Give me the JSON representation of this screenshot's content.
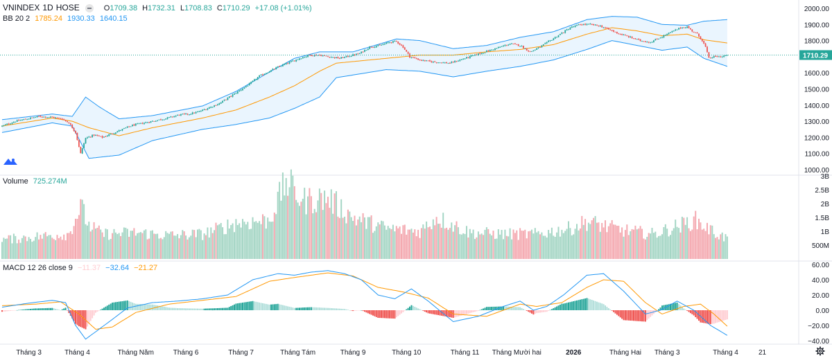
{
  "header": {
    "symbol": "VNINDEX",
    "interval": "1D",
    "exchange": "HOSE",
    "ohlc": {
      "o_label": "O",
      "o_value": "1709.38",
      "h_label": "H",
      "h_value": "1732.31",
      "l_label": "L",
      "l_value": "1708.83",
      "c_label": "C",
      "c_value": "1710.29",
      "change": "+17.08 (+1.01%)"
    }
  },
  "indicators": {
    "bb": {
      "name": "BB 20 2",
      "basis": "1785.24",
      "upper": "1930.33",
      "lower": "1640.15"
    },
    "volume": {
      "name": "Volume",
      "value": "725.274M"
    },
    "macd": {
      "name": "MACD 12 26 close 9",
      "hist": "−11.37",
      "macd": "−32.64",
      "signal": "−21.27"
    }
  },
  "colors": {
    "up": "#26a69a",
    "down": "#ef5350",
    "vol_up": "#a5d6c5",
    "vol_down": "#f4a9b0",
    "bb_line": "#2196f3",
    "bb_fill": "#e3f2fd",
    "basis": "#ff9800",
    "macd_line": "#2196f3",
    "signal_line": "#ff9800",
    "hist_up_strong": "#26a69a",
    "hist_up_weak": "#b2dfdb",
    "hist_dn_strong": "#ef5350",
    "hist_dn_weak": "#ffcdd2"
  },
  "last_price_label": "1710.29",
  "settings_icon": "gear-icon",
  "chart_data": [
    {
      "type": "candlestick",
      "title": "VNINDEX 1D HOSE",
      "ylim": [
        990,
        2010
      ],
      "y_ticks": [
        "2000.00",
        "1900.00",
        "1800.00",
        "1700.00",
        "1600.00",
        "1500.00",
        "1400.00",
        "1300.00",
        "1200.00",
        "1100.00",
        "1000.00"
      ],
      "last_price": 1710.29,
      "close_anchors": [
        [
          0,
          1270
        ],
        [
          8,
          1300
        ],
        [
          15,
          1315
        ],
        [
          22,
          1330
        ],
        [
          30,
          1325
        ],
        [
          36,
          1315
        ],
        [
          40,
          1290
        ],
        [
          44,
          1230
        ],
        [
          47,
          1100
        ],
        [
          50,
          1195
        ],
        [
          55,
          1215
        ],
        [
          60,
          1200
        ],
        [
          66,
          1225
        ],
        [
          72,
          1250
        ],
        [
          78,
          1275
        ],
        [
          85,
          1290
        ],
        [
          92,
          1305
        ],
        [
          99,
          1320
        ],
        [
          106,
          1340
        ],
        [
          112,
          1345
        ],
        [
          118,
          1360
        ],
        [
          124,
          1385
        ],
        [
          130,
          1410
        ],
        [
          136,
          1450
        ],
        [
          142,
          1490
        ],
        [
          148,
          1530
        ],
        [
          154,
          1580
        ],
        [
          160,
          1610
        ],
        [
          166,
          1640
        ],
        [
          172,
          1665
        ],
        [
          178,
          1690
        ],
        [
          184,
          1710
        ],
        [
          190,
          1710
        ],
        [
          196,
          1700
        ],
        [
          202,
          1690
        ],
        [
          208,
          1705
        ],
        [
          214,
          1720
        ],
        [
          220,
          1760
        ],
        [
          226,
          1770
        ],
        [
          232,
          1790
        ],
        [
          236,
          1795
        ],
        [
          240,
          1760
        ],
        [
          244,
          1700
        ],
        [
          250,
          1680
        ],
        [
          256,
          1670
        ],
        [
          262,
          1665
        ],
        [
          268,
          1660
        ],
        [
          274,
          1680
        ],
        [
          280,
          1700
        ],
        [
          286,
          1720
        ],
        [
          292,
          1740
        ],
        [
          298,
          1760
        ],
        [
          304,
          1780
        ],
        [
          310,
          1770
        ],
        [
          316,
          1730
        ],
        [
          322,
          1760
        ],
        [
          328,
          1800
        ],
        [
          334,
          1840
        ],
        [
          340,
          1880
        ],
        [
          346,
          1900
        ],
        [
          352,
          1900
        ],
        [
          358,
          1890
        ],
        [
          364,
          1865
        ],
        [
          370,
          1840
        ],
        [
          376,
          1820
        ],
        [
          382,
          1800
        ],
        [
          388,
          1790
        ],
        [
          394,
          1820
        ],
        [
          400,
          1850
        ],
        [
          406,
          1880
        ],
        [
          410,
          1885
        ],
        [
          413,
          1860
        ],
        [
          416,
          1840
        ],
        [
          419,
          1800
        ],
        [
          421,
          1760
        ],
        [
          423,
          1690
        ],
        [
          426,
          1700
        ],
        [
          430,
          1700
        ],
        [
          434,
          1710
        ]
      ],
      "series": [
        {
          "name": "BB upper",
          "anchors": [
            [
              0,
              1310
            ],
            [
              30,
              1345
            ],
            [
              42,
              1330
            ],
            [
              50,
              1450
            ],
            [
              58,
              1390
            ],
            [
              70,
              1315
            ],
            [
              90,
              1335
            ],
            [
              120,
              1395
            ],
            [
              140,
              1485
            ],
            [
              160,
              1605
            ],
            [
              175,
              1690
            ],
            [
              190,
              1730
            ],
            [
              210,
              1730
            ],
            [
              236,
              1810
            ],
            [
              250,
              1800
            ],
            [
              270,
              1750
            ],
            [
              290,
              1770
            ],
            [
              310,
              1820
            ],
            [
              330,
              1855
            ],
            [
              350,
              1930
            ],
            [
              365,
              1950
            ],
            [
              380,
              1945
            ],
            [
              395,
              1900
            ],
            [
              410,
              1895
            ],
            [
              420,
              1920
            ],
            [
              434,
              1930
            ]
          ]
        },
        {
          "name": "BB basis",
          "anchors": [
            [
              0,
              1270
            ],
            [
              30,
              1320
            ],
            [
              42,
              1300
            ],
            [
              52,
              1260
            ],
            [
              70,
              1210
            ],
            [
              90,
              1260
            ],
            [
              120,
              1320
            ],
            [
              140,
              1370
            ],
            [
              160,
              1450
            ],
            [
              175,
              1520
            ],
            [
              190,
              1610
            ],
            [
              200,
              1660
            ],
            [
              230,
              1690
            ],
            [
              250,
              1710
            ],
            [
              270,
              1710
            ],
            [
              290,
              1730
            ],
            [
              310,
              1745
            ],
            [
              330,
              1775
            ],
            [
              350,
              1840
            ],
            [
              365,
              1880
            ],
            [
              380,
              1860
            ],
            [
              395,
              1830
            ],
            [
              410,
              1840
            ],
            [
              420,
              1805
            ],
            [
              434,
              1785
            ]
          ]
        },
        {
          "name": "BB lower",
          "anchors": [
            [
              0,
              1230
            ],
            [
              30,
              1290
            ],
            [
              42,
              1270
            ],
            [
              52,
              1070
            ],
            [
              70,
              1090
            ],
            [
              90,
              1180
            ],
            [
              120,
              1250
            ],
            [
              140,
              1280
            ],
            [
              160,
              1320
            ],
            [
              175,
              1380
            ],
            [
              190,
              1450
            ],
            [
              200,
              1570
            ],
            [
              230,
              1620
            ],
            [
              250,
              1610
            ],
            [
              270,
              1575
            ],
            [
              290,
              1610
            ],
            [
              310,
              1640
            ],
            [
              330,
              1680
            ],
            [
              350,
              1745
            ],
            [
              365,
              1800
            ],
            [
              380,
              1770
            ],
            [
              395,
              1740
            ],
            [
              410,
              1760
            ],
            [
              420,
              1690
            ],
            [
              434,
              1640
            ]
          ]
        }
      ]
    },
    {
      "type": "bar",
      "title": "Volume",
      "ylim": [
        0,
        3200000000
      ],
      "y_ticks": [
        "3B",
        "2.5B",
        "2B",
        "1.5B",
        "1B",
        "500M"
      ],
      "volume_anchors_billion": [
        [
          0,
          0.7
        ],
        [
          20,
          0.8
        ],
        [
          40,
          0.9
        ],
        [
          47,
          1.9
        ],
        [
          52,
          1.2
        ],
        [
          60,
          0.9
        ],
        [
          80,
          0.95
        ],
        [
          100,
          0.85
        ],
        [
          120,
          0.9
        ],
        [
          140,
          1.3
        ],
        [
          160,
          1.4
        ],
        [
          170,
          2.8
        ],
        [
          180,
          2.1
        ],
        [
          195,
          2.2
        ],
        [
          210,
          1.5
        ],
        [
          230,
          1.1
        ],
        [
          250,
          1.0
        ],
        [
          260,
          1.5
        ],
        [
          280,
          0.95
        ],
        [
          300,
          0.9
        ],
        [
          320,
          0.9
        ],
        [
          340,
          1.1
        ],
        [
          350,
          1.35
        ],
        [
          370,
          1.05
        ],
        [
          390,
          0.9
        ],
        [
          405,
          1.2
        ],
        [
          415,
          1.4
        ],
        [
          425,
          1.0
        ],
        [
          434,
          0.73
        ]
      ]
    },
    {
      "type": "line",
      "title": "MACD 12 26 close 9",
      "ylim": [
        -45,
        62
      ],
      "y_ticks": [
        "60.00",
        "40.00",
        "20.00",
        "0.00",
        "−20.00",
        "−40.00"
      ],
      "series": [
        {
          "name": "MACD",
          "anchors": [
            [
              0,
              4
            ],
            [
              15,
              9
            ],
            [
              30,
              13
            ],
            [
              38,
              10
            ],
            [
              44,
              -20
            ],
            [
              50,
              -38
            ],
            [
              58,
              -25
            ],
            [
              66,
              -12
            ],
            [
              75,
              3
            ],
            [
              90,
              10
            ],
            [
              105,
              12
            ],
            [
              120,
              15
            ],
            [
              135,
              20
            ],
            [
              150,
              40
            ],
            [
              165,
              48
            ],
            [
              175,
              46
            ],
            [
              185,
              50
            ],
            [
              195,
              52
            ],
            [
              205,
              48
            ],
            [
              215,
              40
            ],
            [
              225,
              20
            ],
            [
              235,
              15
            ],
            [
              245,
              28
            ],
            [
              255,
              12
            ],
            [
              270,
              -15
            ],
            [
              285,
              -8
            ],
            [
              300,
              5
            ],
            [
              310,
              12
            ],
            [
              318,
              0
            ],
            [
              326,
              5
            ],
            [
              336,
              20
            ],
            [
              350,
              46
            ],
            [
              360,
              48
            ],
            [
              372,
              25
            ],
            [
              385,
              -5
            ],
            [
              394,
              0
            ],
            [
              404,
              12
            ],
            [
              414,
              0
            ],
            [
              424,
              -20
            ],
            [
              434,
              -33
            ]
          ]
        },
        {
          "name": "Signal",
          "anchors": [
            [
              0,
              6
            ],
            [
              20,
              8
            ],
            [
              35,
              11
            ],
            [
              46,
              -5
            ],
            [
              56,
              -25
            ],
            [
              66,
              -22
            ],
            [
              80,
              -3
            ],
            [
              100,
              8
            ],
            [
              120,
              13
            ],
            [
              140,
              18
            ],
            [
              160,
              38
            ],
            [
              175,
              43
            ],
            [
              195,
              49
            ],
            [
              210,
              45
            ],
            [
              225,
              30
            ],
            [
              240,
              24
            ],
            [
              255,
              16
            ],
            [
              270,
              -5
            ],
            [
              290,
              -8
            ],
            [
              310,
              8
            ],
            [
              320,
              5
            ],
            [
              335,
              10
            ],
            [
              350,
              30
            ],
            [
              360,
              40
            ],
            [
              372,
              38
            ],
            [
              385,
              10
            ],
            [
              395,
              -5
            ],
            [
              408,
              5
            ],
            [
              418,
              8
            ],
            [
              426,
              -5
            ],
            [
              434,
              -21
            ]
          ]
        }
      ],
      "histogram": "MACD minus Signal"
    }
  ],
  "x_axis": {
    "labels": [
      {
        "text": "Tháng 3",
        "bar": 16
      },
      {
        "text": "Tháng 4",
        "bar": 45
      },
      {
        "text": "Tháng Năm",
        "bar": 80
      },
      {
        "text": "Tháng 6",
        "bar": 110
      },
      {
        "text": "Tháng 7",
        "bar": 143
      },
      {
        "text": "Tháng Tám",
        "bar": 177
      },
      {
        "text": "Tháng 9",
        "bar": 210
      },
      {
        "text": "Tháng 10",
        "bar": 242
      },
      {
        "text": "Tháng 11",
        "bar": 277
      },
      {
        "text": "Tháng Mười hai",
        "bar": 308
      },
      {
        "text": "2026",
        "bar": 342
      },
      {
        "text": "Tháng Hai",
        "bar": 373
      },
      {
        "text": "Tháng 3",
        "bar": 398
      },
      {
        "text": "Tháng 4",
        "bar": 433
      },
      {
        "text": "21",
        "bar": 455
      }
    ]
  }
}
